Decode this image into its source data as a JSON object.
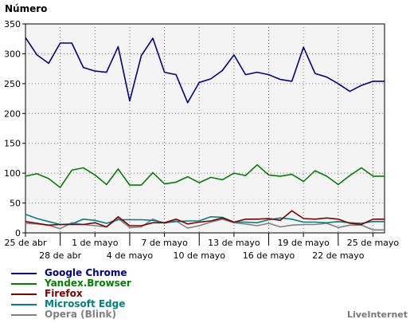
{
  "chart_data": {
    "type": "line",
    "ylabel": "Número",
    "ylim": [
      0,
      350
    ],
    "yticks": [
      0,
      50,
      100,
      150,
      200,
      250,
      300,
      350
    ],
    "grid": true,
    "legend_position": "bottom-left",
    "x": [
      "2021-04-25",
      "2021-04-26",
      "2021-04-27",
      "2021-04-28",
      "2021-04-29",
      "2021-04-30",
      "2021-05-01",
      "2021-05-02",
      "2021-05-03",
      "2021-05-04",
      "2021-05-05",
      "2021-05-06",
      "2021-05-07",
      "2021-05-08",
      "2021-05-09",
      "2021-05-10",
      "2021-05-11",
      "2021-05-12",
      "2021-05-13",
      "2021-05-14",
      "2021-05-15",
      "2021-05-16",
      "2021-05-17",
      "2021-05-18",
      "2021-05-19",
      "2021-05-20",
      "2021-05-21",
      "2021-05-22",
      "2021-05-23",
      "2021-05-24",
      "2021-05-25",
      "2021-05-26"
    ],
    "xtick_labels_top": [
      "25 de abr",
      "1 de mayo",
      "7 de mayo",
      "13 de mayo",
      "19 de mayo",
      "25 de mayo"
    ],
    "xtick_labels_bottom": [
      "28 de abr",
      "4 de mayo",
      "10 de mayo",
      "16 de mayo",
      "22 de mayo"
    ],
    "series": [
      {
        "name": "Google Chrome",
        "color": "#000080",
        "values": [
          327,
          298,
          284,
          318,
          318,
          277,
          271,
          269,
          312,
          221,
          297,
          326,
          269,
          265,
          218,
          252,
          258,
          272,
          298,
          265,
          269,
          265,
          257,
          254,
          311,
          267,
          261,
          250,
          237,
          247,
          254,
          254
        ]
      },
      {
        "name": "Yandex.Browser",
        "color": "#008000",
        "values": [
          95,
          99,
          91,
          76,
          105,
          109,
          97,
          81,
          107,
          80,
          80,
          101,
          82,
          85,
          94,
          84,
          93,
          89,
          100,
          96,
          114,
          97,
          95,
          98,
          86,
          104,
          95,
          81,
          96,
          109,
          95,
          95
        ]
      },
      {
        "name": "Firefox",
        "color": "#800000",
        "values": [
          19,
          16,
          13,
          14,
          14,
          14,
          17,
          10,
          27,
          12,
          12,
          17,
          17,
          23,
          15,
          18,
          20,
          25,
          18,
          23,
          23,
          24,
          21,
          37,
          24,
          23,
          25,
          23,
          16,
          14,
          23,
          23
        ]
      },
      {
        "name": "Microsoft Edge",
        "color": "#008080",
        "values": [
          31,
          24,
          19,
          14,
          15,
          23,
          21,
          16,
          22,
          22,
          22,
          21,
          17,
          19,
          20,
          20,
          27,
          26,
          18,
          18,
          17,
          22,
          25,
          23,
          18,
          18,
          17,
          19,
          17,
          16,
          19,
          19
        ]
      },
      {
        "name": "Opera (Blink)",
        "color": "#808080",
        "values": [
          16,
          15,
          13,
          7,
          17,
          14,
          12,
          10,
          24,
          9,
          10,
          23,
          16,
          20,
          8,
          12,
          18,
          23,
          17,
          15,
          12,
          16,
          10,
          13,
          14,
          14,
          16,
          9,
          13,
          13,
          5,
          5
        ]
      }
    ]
  },
  "brand": "LiveInternet"
}
